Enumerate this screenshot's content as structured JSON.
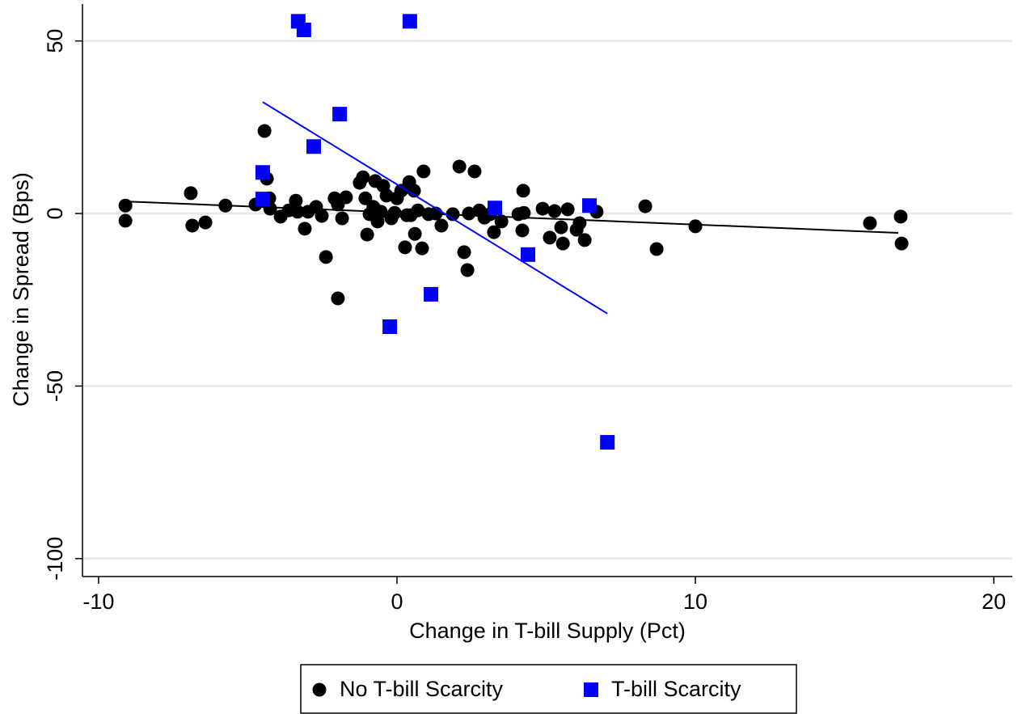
{
  "chart_data": {
    "type": "scatter",
    "xlabel": "Change in T-bill Supply (Pct)",
    "ylabel": "Change in Spread (Bps)",
    "xlim": [
      -10.54,
      20.62
    ],
    "ylim": [
      -105.2,
      60.7
    ],
    "xticks": [
      -10,
      0,
      10,
      20
    ],
    "yticks": [
      -100,
      -50,
      0,
      50
    ],
    "grid": true,
    "legend": "bottom",
    "series": [
      {
        "name": "No T-bill Scarcity",
        "color": "#000000",
        "marker": "circle",
        "x": [
          -9.1,
          -9.1,
          -6.91,
          -6.86,
          -6.42,
          -5.75,
          -4.74,
          -4.44,
          -4.36,
          -4.28,
          -4.25,
          -3.9,
          -3.63,
          -3.39,
          -3.33,
          -3.09,
          -2.98,
          -2.71,
          -2.52,
          -2.38,
          -2.09,
          -1.98,
          -1.98,
          -1.84,
          -1.71,
          -1.25,
          -1.14,
          -1.06,
          -1.0,
          -0.92,
          -0.79,
          -0.73,
          -0.65,
          -0.54,
          -0.46,
          -0.35,
          -0.19,
          -0.08,
          0,
          0.14,
          0.27,
          0.33,
          0.41,
          0.46,
          0.57,
          0.6,
          0.7,
          0.84,
          0.89,
          1.06,
          1.3,
          1.49,
          1.87,
          2.09,
          2.25,
          2.36,
          2.41,
          2.6,
          2.76,
          2.93,
          3.12,
          3.25,
          3.5,
          4.07,
          4.2,
          4.23,
          4.25,
          4.88,
          5.12,
          5.28,
          5.5,
          5.56,
          5.72,
          6.02,
          6.12,
          6.29,
          6.69,
          8.32,
          8.7,
          10.0,
          15.85,
          16.88,
          16.91
        ],
        "values": [
          2.3,
          -2.1,
          5.9,
          -3.5,
          -2.6,
          2.3,
          2.6,
          23.9,
          10.1,
          4.4,
          1.4,
          -0.9,
          0.9,
          3.7,
          0.5,
          -4.4,
          0.5,
          1.9,
          -0.7,
          -12.6,
          4.4,
          2.6,
          -24.6,
          -1.4,
          4.7,
          8.9,
          10.5,
          4.4,
          -6.1,
          -0.2,
          1.9,
          9.4,
          -2.3,
          0.5,
          8.0,
          5.2,
          -1.4,
          0.2,
          4.4,
          6.6,
          -9.8,
          -0.5,
          9.1,
          -0.5,
          6.6,
          -5.9,
          0.9,
          -10.1,
          12.2,
          -0.2,
          0,
          -3.5,
          -0.2,
          13.6,
          -11.2,
          -16.4,
          0,
          12.2,
          0.9,
          -1.2,
          -0.2,
          -5.4,
          -2.3,
          -0.2,
          -4.9,
          6.6,
          0.2,
          1.4,
          -7.0,
          0.7,
          -4.0,
          -8.7,
          1.2,
          -4.7,
          -2.8,
          -7.7,
          0.5,
          2.1,
          -10.3,
          -3.7,
          -2.8,
          -0.9,
          -8.7
        ],
        "fit": {
          "x": [
            -9.1,
            16.8
          ],
          "values": [
            3.5,
            -5.6
          ]
        }
      },
      {
        "name": "T-bill Scarcity",
        "color": "#0000ff",
        "marker": "square",
        "x": [
          -3.31,
          -3.12,
          0.43,
          -1.92,
          -2.79,
          -4.5,
          -4.5,
          3.28,
          6.45,
          4.39,
          1.14,
          -0.24,
          7.05
        ],
        "values": [
          55.7,
          53.2,
          55.7,
          28.8,
          19.4,
          11.9,
          4.2,
          1.6,
          2.3,
          -11.9,
          -23.4,
          -32.8,
          -66.3
        ],
        "fit": {
          "x": [
            -4.5,
            7.05
          ],
          "values": [
            32.3,
            -29.0
          ]
        }
      }
    ]
  }
}
